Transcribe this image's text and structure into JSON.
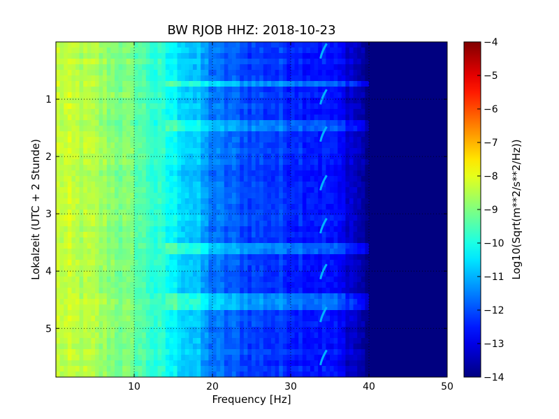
{
  "chart_data": {
    "type": "heatmap",
    "title": "BW RJOB HHZ: 2018-10-23",
    "xlabel": "Frequency [Hz]",
    "ylabel": "Lokalzeit (UTC + 2 Stunde)",
    "xlim": [
      0,
      50
    ],
    "ylim": [
      0,
      5.85
    ],
    "y_inverted": true,
    "x_ticks": [
      10,
      20,
      30,
      40,
      50
    ],
    "x_tick_labels": [
      "10",
      "20",
      "30",
      "40",
      "50"
    ],
    "y_ticks": [
      1,
      2,
      3,
      4,
      5
    ],
    "y_tick_labels": [
      "1",
      "2",
      "3",
      "4",
      "5"
    ],
    "grid": true,
    "colormap": "jet",
    "colorbar": {
      "label": "Log10(Sqrt(m**2/s**2/Hz))",
      "range": [
        -14,
        -4
      ],
      "ticks": [
        -4,
        -5,
        -6,
        -7,
        -8,
        -9,
        -10,
        -11,
        -12,
        -13,
        -14
      ],
      "tick_labels": [
        "−4",
        "−5",
        "−6",
        "−7",
        "−8",
        "−9",
        "−10",
        "−11",
        "−12",
        "−13",
        "−14"
      ]
    },
    "spectrum_profile": {
      "frequency_hz": [
        0,
        5,
        10,
        15,
        18,
        20,
        25,
        30,
        35,
        38,
        40,
        50
      ],
      "log10_amplitude": [
        -8.3,
        -8.6,
        -9.2,
        -10.3,
        -10.9,
        -11.6,
        -12.1,
        -12.3,
        -12.6,
        -13.2,
        -14,
        -14
      ]
    },
    "recurring_feature": {
      "frequency_hz": [
        33.8,
        34.6
      ],
      "time_hours": [
        0.15,
        0.95,
        1.6,
        2.45,
        3.2,
        4.0,
        4.75,
        5.5
      ]
    },
    "broadband_bands_hours": [
      0.75,
      1.45,
      3.6,
      4.5,
      4.6
    ]
  }
}
